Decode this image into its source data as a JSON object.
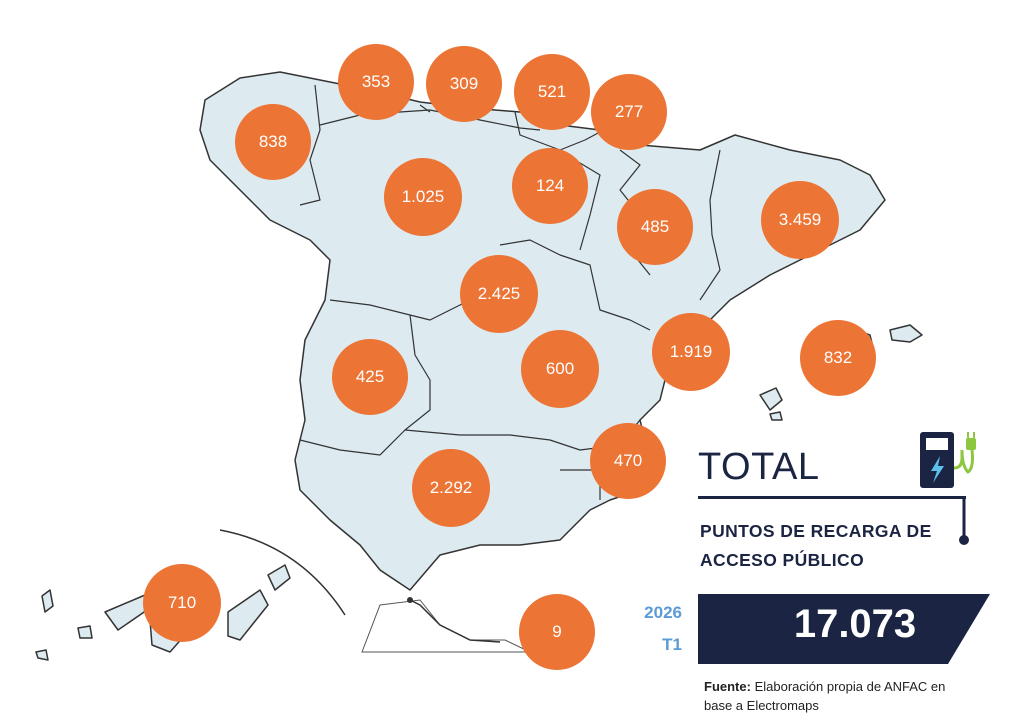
{
  "regions": [
    {
      "id": "galicia",
      "value": "838"
    },
    {
      "id": "asturias",
      "value": "353"
    },
    {
      "id": "cantabria",
      "value": "309"
    },
    {
      "id": "pais-vasco",
      "value": "521"
    },
    {
      "id": "navarra",
      "value": "277"
    },
    {
      "id": "castilla-y-leon",
      "value": "1.025"
    },
    {
      "id": "la-rioja",
      "value": "124"
    },
    {
      "id": "aragon",
      "value": "485"
    },
    {
      "id": "cataluna",
      "value": "3.459"
    },
    {
      "id": "madrid",
      "value": "2.425"
    },
    {
      "id": "extremadura",
      "value": "425"
    },
    {
      "id": "castilla-la-mancha",
      "value": "600"
    },
    {
      "id": "comunidad-valenciana",
      "value": "1.919"
    },
    {
      "id": "baleares",
      "value": "832"
    },
    {
      "id": "murcia",
      "value": "470"
    },
    {
      "id": "andalucia",
      "value": "2.292"
    },
    {
      "id": "canarias",
      "value": "710"
    },
    {
      "id": "ceuta-melilla",
      "value": "9"
    }
  ],
  "total": {
    "title": "TOTAL",
    "subtitle": "PUNTOS DE RECARGA DE ACCESO PÚBLICO",
    "year": "2026",
    "quarter": "T1",
    "value": "17.073"
  },
  "source": {
    "label": "Fuente:",
    "text": "Elaboración propia de ANFAC en base a Electromaps"
  },
  "colors": {
    "bubble": "#EC7434",
    "land": "#DDEBF1",
    "navy": "#1B2543",
    "period": "#5B9BD5"
  }
}
